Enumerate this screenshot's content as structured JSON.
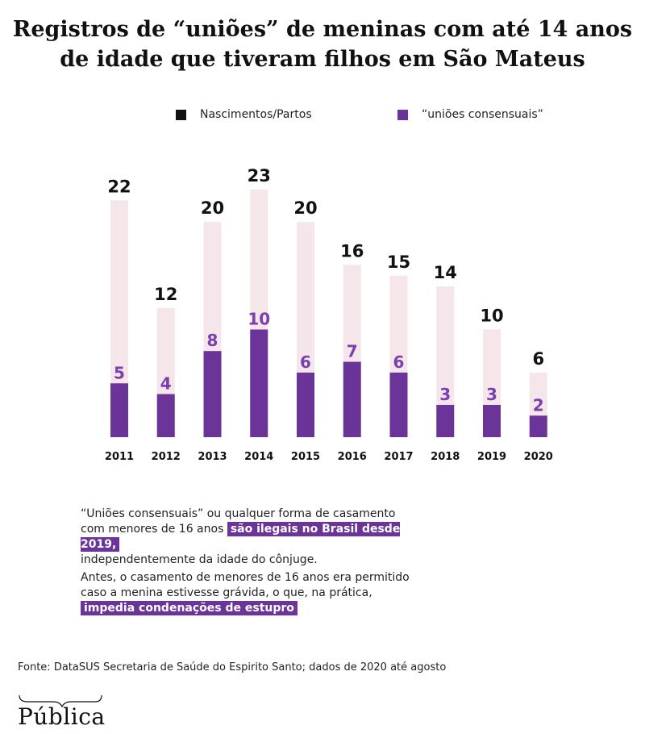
{
  "title_line1": "Registros de “uniões” de meninas com até 14 anos",
  "title_line2": "de idade que tiveram filhos em São Mateus",
  "legend": {
    "births": "Nascimentos/Partos",
    "unions": "“uniões consensuais”"
  },
  "colors": {
    "births": "#f5e6ea",
    "unions": "#6a3498",
    "births_label": "#111111",
    "unions_label": "#7a3fae"
  },
  "chart_data": {
    "type": "bar",
    "categories": [
      "2011",
      "2012",
      "2013",
      "2014",
      "2015",
      "2016",
      "2017",
      "2018",
      "2019",
      "2020"
    ],
    "series": [
      {
        "name": "Nascimentos/Partos",
        "values": [
          22,
          12,
          20,
          23,
          20,
          16,
          15,
          14,
          10,
          6
        ]
      },
      {
        "name": "“uniões consensuais”",
        "values": [
          5,
          4,
          8,
          10,
          6,
          7,
          6,
          3,
          3,
          2
        ]
      }
    ],
    "ylim": [
      0,
      23
    ],
    "grid": false,
    "legend_position": "top"
  },
  "note1": {
    "line1": "“Uniões consensuais” ou qualquer forma de casamento",
    "line2_pre": "com menores de 16 anos",
    "line2_highlight": "são ilegais no Brasil desde 2019,",
    "line3": "independentemente da idade do cônjuge."
  },
  "note2": {
    "line1": "Antes, o casamento de menores de 16 anos era permitido",
    "line2": "caso a menina estivesse grávida, o que, na prática,",
    "highlight": "impedia condenações de estupro"
  },
  "source": "Fonte: DataSUS Secretaria de Saúde do Espirito Santo; dados de 2020 até agosto",
  "logo": "Pública"
}
